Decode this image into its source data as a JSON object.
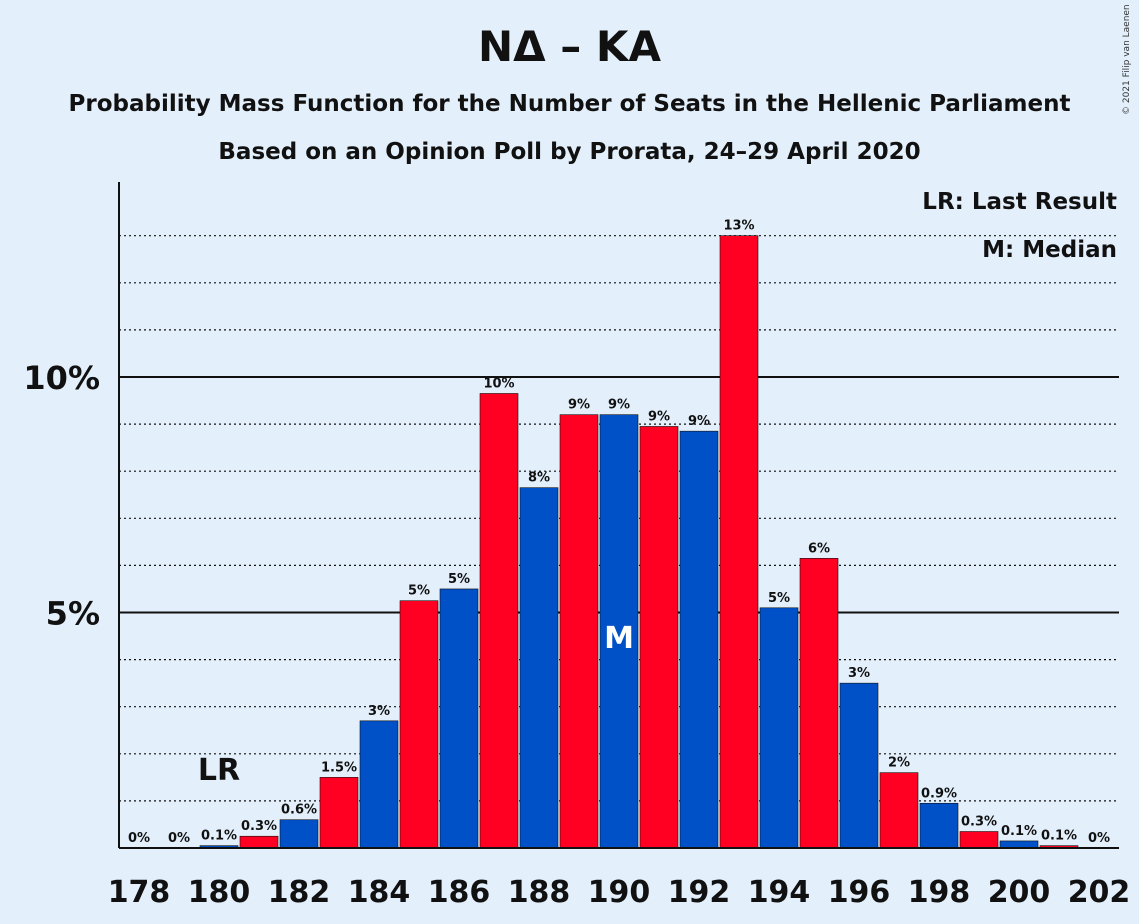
{
  "title": "ΝΔ – ΚΑ",
  "subtitle": "Probability Mass Function for the Number of Seats in the Hellenic Parliament",
  "subtitle2": "Based on an Opinion Poll by Prorata, 24–29 April 2020",
  "copyright": "© 2021 Filip van Laenen",
  "legend": {
    "last_result": "LR: Last Result",
    "median": "M: Median"
  },
  "colors": {
    "background": "#e3f0fc",
    "red": "#ff0022",
    "blue": "#0050c8"
  },
  "chart_data": {
    "type": "bar",
    "title": "ΝΔ – ΚΑ",
    "xlabel": "",
    "ylabel": "",
    "x": [
      178,
      179,
      180,
      181,
      182,
      183,
      184,
      185,
      186,
      187,
      188,
      189,
      190,
      191,
      192,
      193,
      194,
      195,
      196,
      197,
      198,
      199,
      200,
      201,
      202
    ],
    "values": [
      0,
      0,
      0.05,
      0.25,
      0.6,
      1.5,
      2.7,
      5.25,
      5.5,
      9.65,
      7.65,
      9.2,
      9.2,
      8.95,
      8.85,
      13.0,
      5.1,
      6.15,
      3.5,
      1.6,
      0.95,
      0.35,
      0.15,
      0.05,
      0
    ],
    "labels": [
      "0%",
      "0%",
      "0.1%",
      "0.3%",
      "0.6%",
      "1.5%",
      "3%",
      "5%",
      "5%",
      "10%",
      "8%",
      "9%",
      "9%",
      "9%",
      "9%",
      "13%",
      "5%",
      "6%",
      "3%",
      "2%",
      "0.9%",
      "0.3%",
      "0.1%",
      "0.1%",
      "0%"
    ],
    "x_ticks": [
      "178",
      "180",
      "182",
      "184",
      "186",
      "188",
      "190",
      "192",
      "194",
      "196",
      "198",
      "200",
      "202"
    ],
    "y_ticks": [
      "5%",
      "10%"
    ],
    "ylim": [
      0,
      14
    ],
    "last_result": 180,
    "last_result_label": "LR",
    "median": 190,
    "median_label": "M",
    "grid": "dotted at every 1%, solid at 5% and 10%"
  }
}
